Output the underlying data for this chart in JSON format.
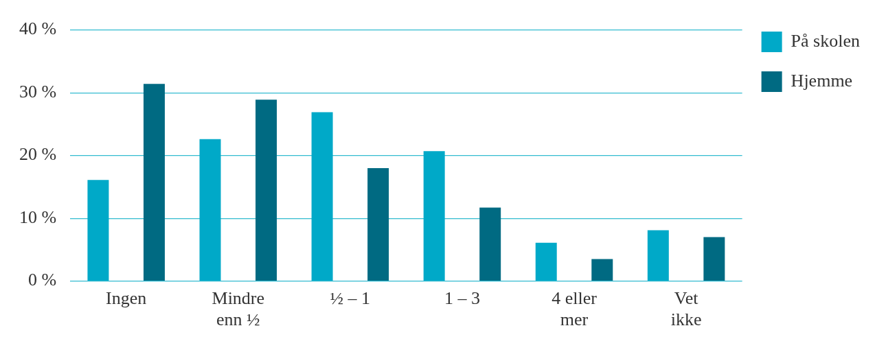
{
  "chart_data": {
    "type": "bar",
    "categories": [
      "Ingen",
      "Mindre enn ½",
      "½ – 1",
      "1 – 3",
      "4 eller mer",
      "Vet ikke"
    ],
    "series": [
      {
        "name": "På skolen",
        "color": "#00a9c8",
        "values": [
          16.1,
          22.6,
          26.9,
          20.7,
          6.1,
          8.1
        ]
      },
      {
        "name": "Hjemme",
        "color": "#006a82",
        "values": [
          31.4,
          28.9,
          18.0,
          11.7,
          3.5,
          7.0
        ]
      }
    ],
    "ylim": [
      0,
      40
    ],
    "yticks": [
      {
        "value": 0,
        "label": "0 %"
      },
      {
        "value": 10,
        "label": "10 %"
      },
      {
        "value": 20,
        "label": "20 %"
      },
      {
        "value": 30,
        "label": "30 %"
      },
      {
        "value": 40,
        "label": "40 %"
      }
    ],
    "grid": "y",
    "legend": "top right"
  }
}
